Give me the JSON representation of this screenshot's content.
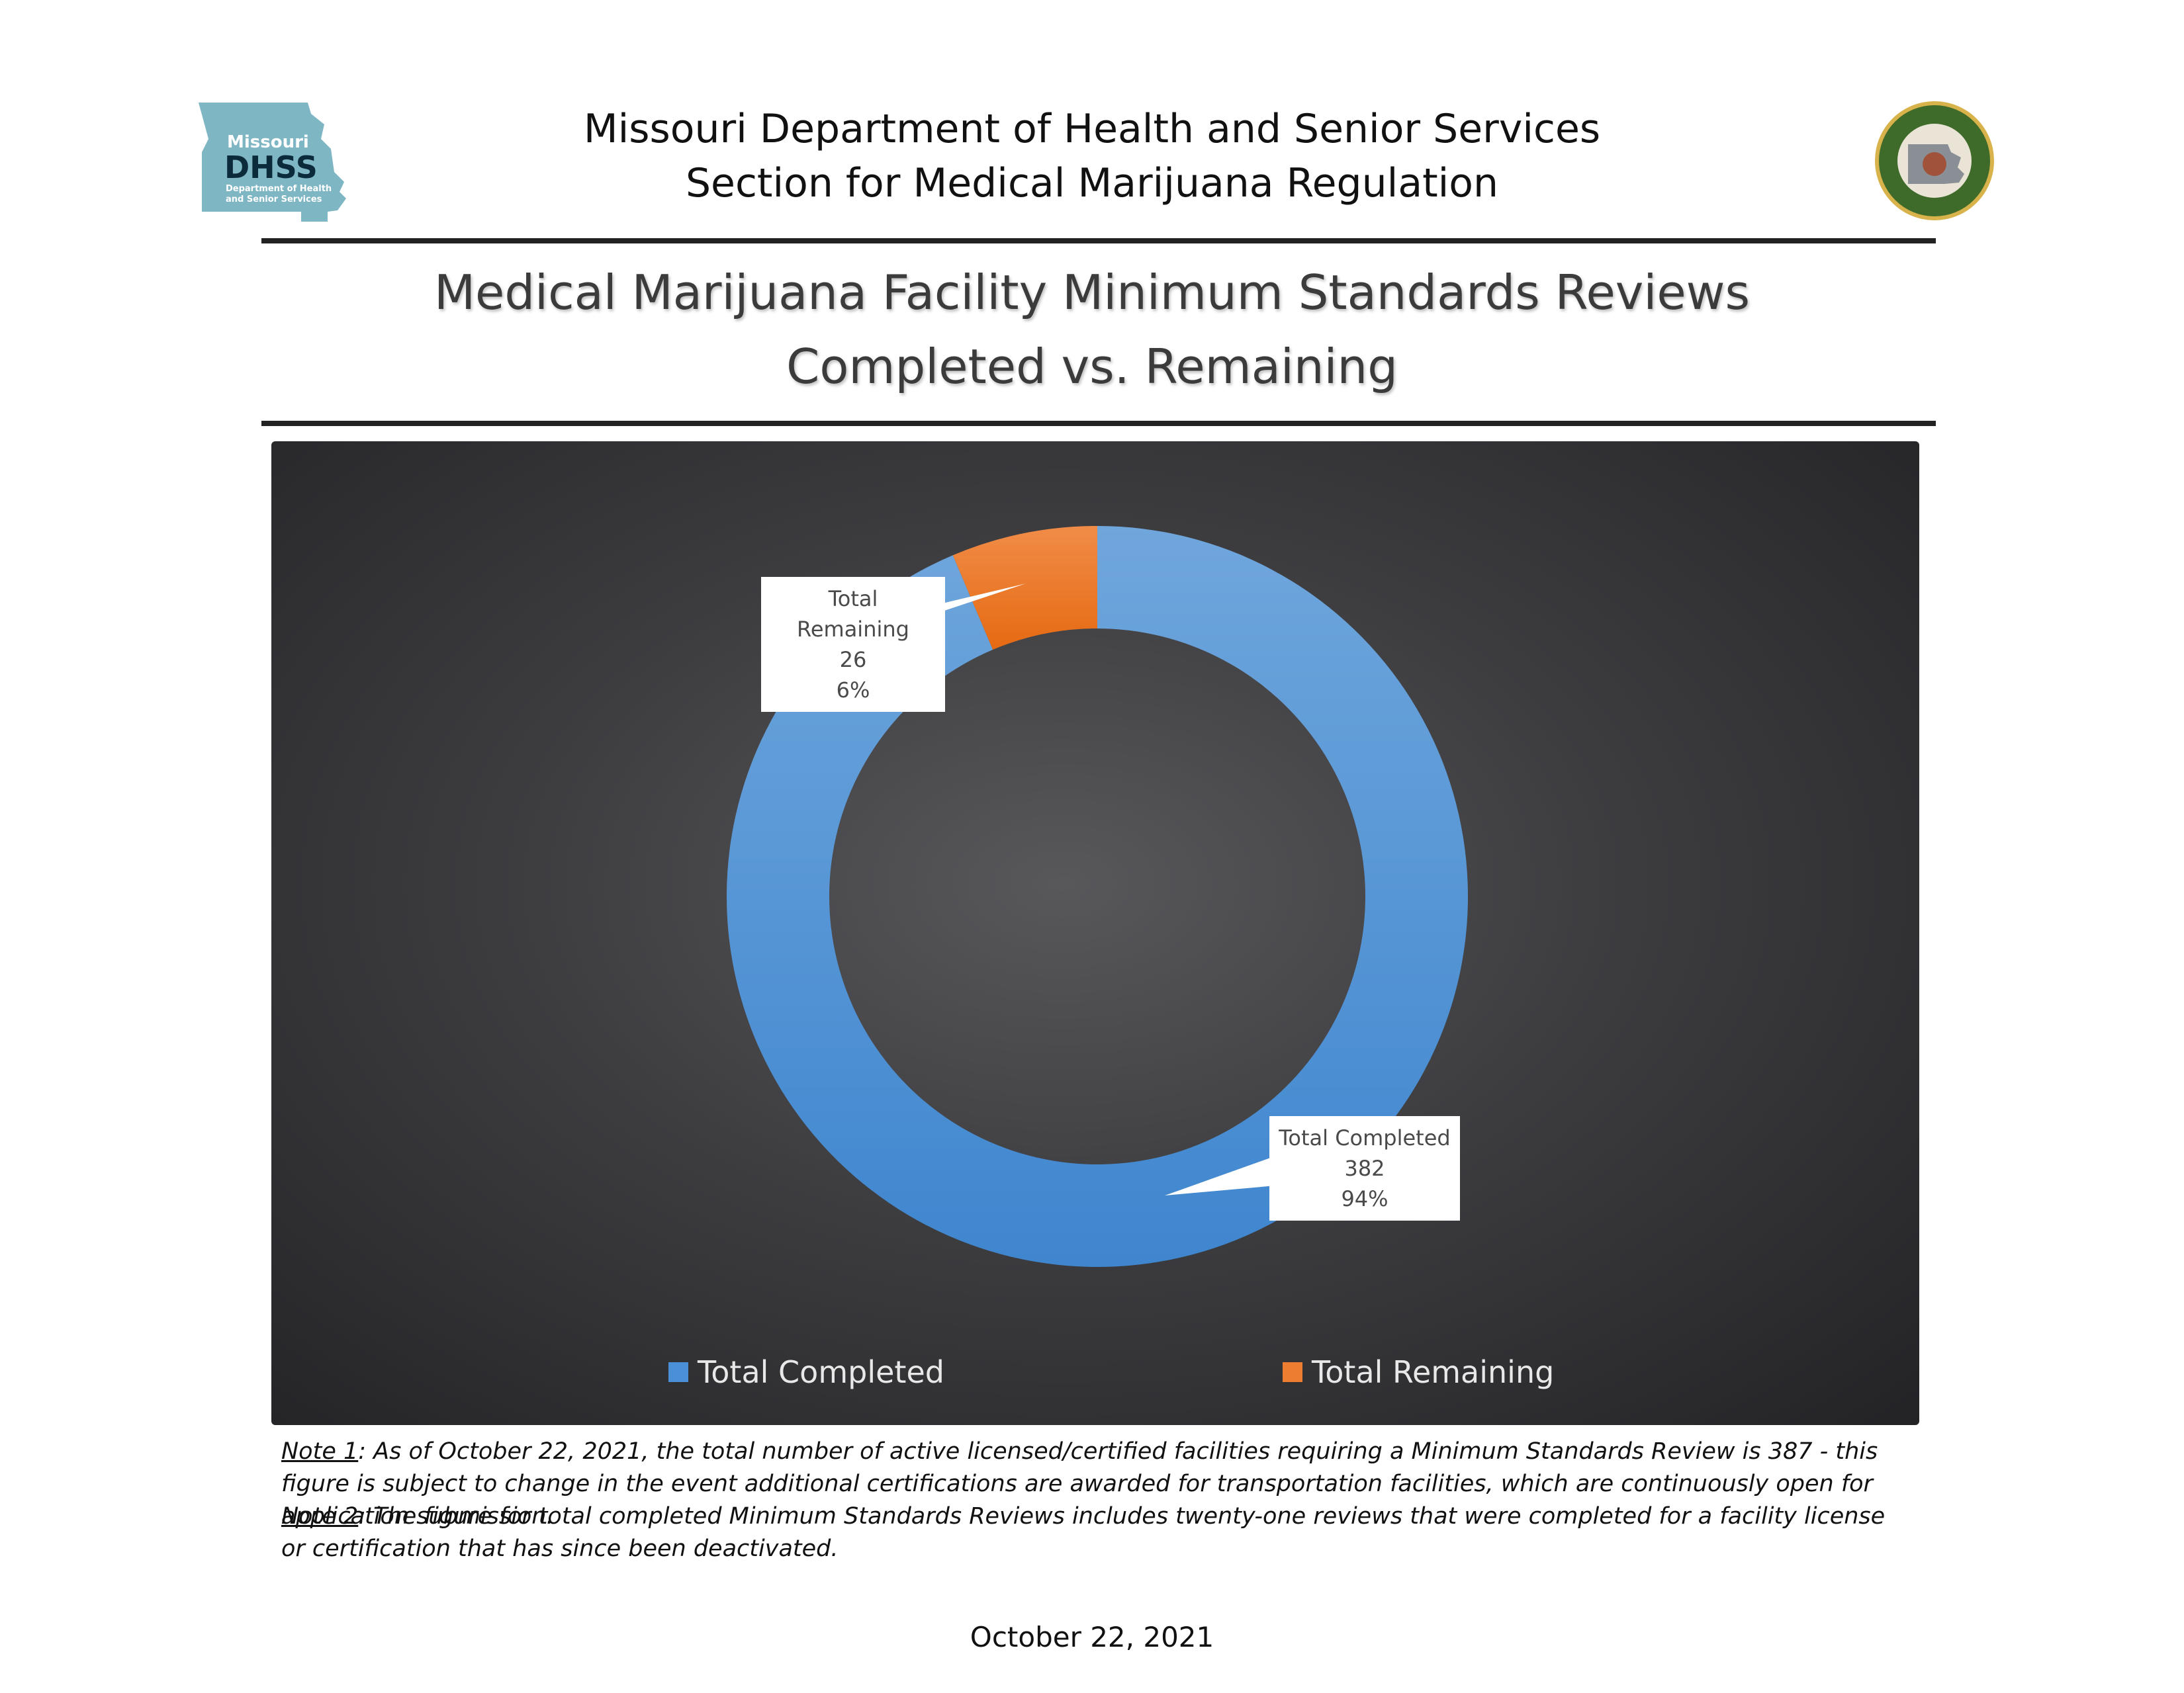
{
  "header": {
    "logo_left": {
      "icon": "missouri-map-icon",
      "lines": [
        "Missouri",
        "DHSS",
        "Department of Health",
        "and Senior Services"
      ],
      "color": "#7fb6c4"
    },
    "line1": "Missouri Department of Health and Senior Services",
    "line2": "Section for Medical Marijuana Regulation",
    "seal_right": {
      "icon": "state-seal-icon",
      "ring_color": "#3f6b2a"
    }
  },
  "title": {
    "line1": "Medical Marijuana Facility Minimum Standards Reviews",
    "line2": "Completed vs. Remaining"
  },
  "chart_data": {
    "type": "pie",
    "variant": "doughnut",
    "title": "",
    "series": [
      {
        "name": "Total Completed",
        "value": 382,
        "percent": "94%",
        "color": "#4a90d9"
      },
      {
        "name": "Total Remaining",
        "value": 26,
        "percent": "6%",
        "color": "#ed7d31"
      }
    ],
    "labels": {
      "completed": {
        "name": "Total Completed",
        "value": "382",
        "percent": "94%"
      },
      "remaining": {
        "name": "Total Remaining",
        "value": "26",
        "percent": "6%"
      }
    },
    "legend": {
      "placement": "bottom",
      "items": [
        {
          "label": "Total Completed",
          "color": "#4a90d9"
        },
        {
          "label": "Total Remaining",
          "color": "#ed7d31"
        }
      ]
    }
  },
  "notes": {
    "note1_label": "Note 1",
    "note1_text": ": As of October 22, 2021, the total number of active licensed/certified facilities requiring a Minimum Standards Review is 387 - this figure is subject to change in the event additional certifications are awarded for transportation facilities, which are continuously open for application submission.",
    "note2_label": "Note 2",
    "note2_text": ": The figure for total completed Minimum Standards Reviews includes twenty-one reviews that were completed for a facility license or certification that has since been deactivated."
  },
  "footer": {
    "date": "October 22, 2021"
  }
}
